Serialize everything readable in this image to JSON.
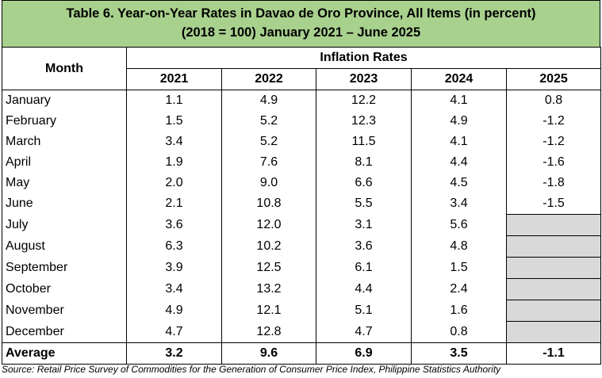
{
  "title": {
    "line1": "Table 6. Year-on-Year Rates in Davao de Oro Province, All Items (in percent)",
    "line2": "(2018 = 100) January 2021 – June 2025"
  },
  "header": {
    "month": "Month",
    "group": "Inflation Rates",
    "years": [
      "2021",
      "2022",
      "2023",
      "2024",
      "2025"
    ]
  },
  "rows": [
    {
      "month": "January",
      "values": [
        "1.1",
        "4.9",
        "12.2",
        "4.1",
        "0.8"
      ]
    },
    {
      "month": "February",
      "values": [
        "1.5",
        "5.2",
        "12.3",
        "4.9",
        "-1.2"
      ]
    },
    {
      "month": "March",
      "values": [
        "3.4",
        "5.2",
        "11.5",
        "4.1",
        "-1.2"
      ]
    },
    {
      "month": "April",
      "values": [
        "1.9",
        "7.6",
        "8.1",
        "4.4",
        "-1.6"
      ]
    },
    {
      "month": "May",
      "values": [
        "2.0",
        "9.0",
        "6.6",
        "4.5",
        "-1.8"
      ]
    },
    {
      "month": "June",
      "values": [
        "2.1",
        "10.8",
        "5.5",
        "3.4",
        "-1.5"
      ]
    },
    {
      "month": "July",
      "values": [
        "3.6",
        "12.0",
        "3.1",
        "5.6",
        ""
      ]
    },
    {
      "month": "August",
      "values": [
        "6.3",
        "10.2",
        "3.6",
        "4.8",
        ""
      ]
    },
    {
      "month": "September",
      "values": [
        "3.9",
        "12.5",
        "6.1",
        "1.5",
        ""
      ]
    },
    {
      "month": "October",
      "values": [
        "3.4",
        "13.2",
        "4.4",
        "2.4",
        ""
      ]
    },
    {
      "month": "November",
      "values": [
        "4.9",
        "12.1",
        "5.1",
        "1.6",
        ""
      ]
    },
    {
      "month": "December",
      "values": [
        "4.7",
        "12.8",
        "4.7",
        "0.8",
        ""
      ]
    }
  ],
  "average": {
    "label": "Average",
    "values": [
      "3.2",
      "9.6",
      "6.9",
      "3.5",
      "-1.1"
    ]
  },
  "source": "Source: Retail Price Survey of Commodities for the Generation of Consumer Price Index, Philippine Statistics Authority",
  "colors": {
    "title_bg": "#a9d18e",
    "blank_cell": "#d9d9d9"
  }
}
